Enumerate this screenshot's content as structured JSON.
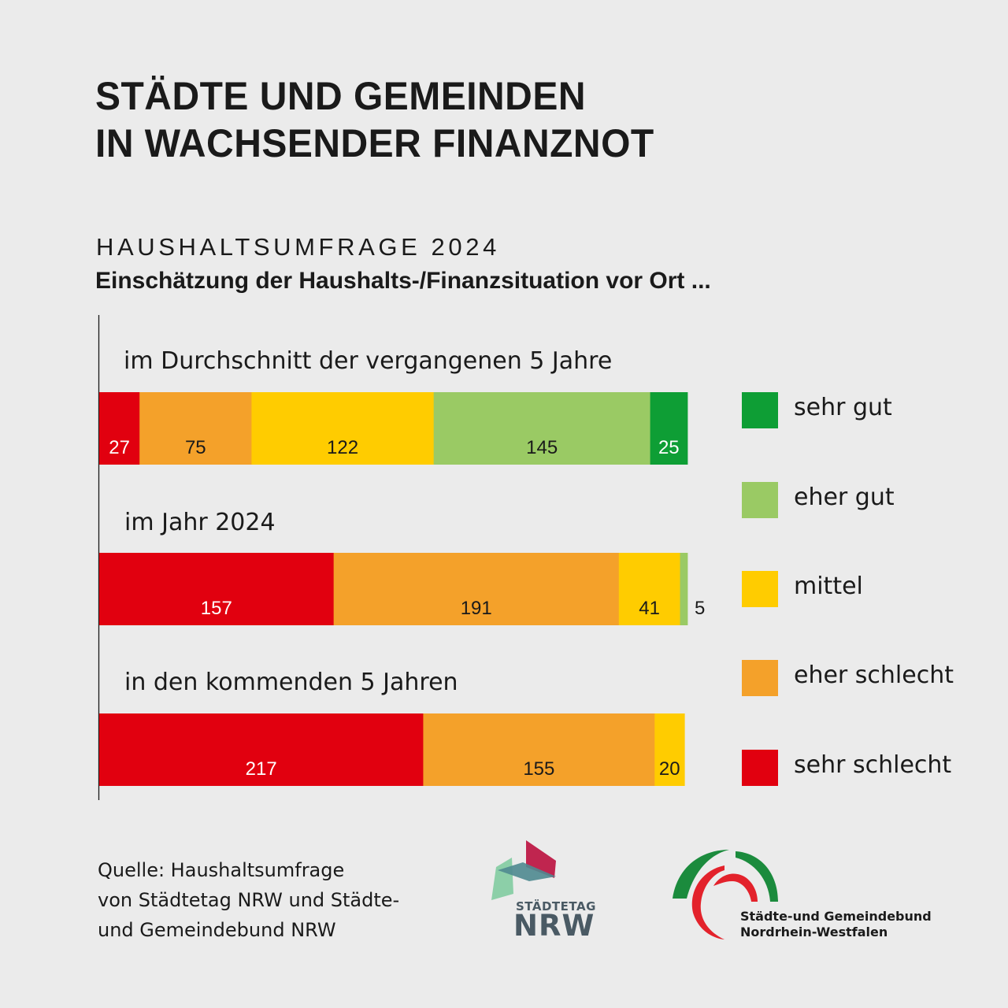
{
  "header": {
    "title_lines": [
      "STÄDTE UND GEMEINDEN",
      "IN WACHSENDER FINANZNOT"
    ],
    "kicker": "HAUSHALTSUMFRAGE 2024",
    "subtitle": "Einschätzung der Haushalts-/Finanzsituation vor Ort ..."
  },
  "chart_data": {
    "type": "bar",
    "orientation": "horizontal",
    "stacked": true,
    "title": "Einschätzung der Haushalts-/Finanzsituation vor Ort ...",
    "categories": [
      "im Durchschnitt der vergangenen 5 Jahre",
      "im Jahr 2024",
      "in den kommenden 5 Jahren"
    ],
    "series": [
      {
        "name": "sehr schlecht",
        "color": "#e1000f",
        "label_color": "#ffffff",
        "values": [
          27,
          157,
          217
        ]
      },
      {
        "name": "eher schlecht",
        "color": "#f4a12a",
        "label_color": "#1a1a1a",
        "values": [
          75,
          191,
          155
        ]
      },
      {
        "name": "mittel",
        "color": "#ffcc00",
        "label_color": "#1a1a1a",
        "values": [
          122,
          41,
          20
        ]
      },
      {
        "name": "eher gut",
        "color": "#9aca64",
        "label_color": "#1a1a1a",
        "values": [
          145,
          5,
          0
        ]
      },
      {
        "name": "sehr gut",
        "color": "#0e9e35",
        "label_color": "#ffffff",
        "values": [
          25,
          0,
          0
        ]
      }
    ],
    "xlim": [
      0,
      394
    ],
    "xlabel": "",
    "ylabel": "",
    "grid": false,
    "axis_ticks": false,
    "legend": {
      "placement": "right",
      "order": [
        "sehr gut",
        "eher gut",
        "mittel",
        "eher schlecht",
        "sehr schlecht"
      ]
    },
    "outside_labels": [
      {
        "category": "im Jahr 2024",
        "series": "eher gut",
        "value": 5
      }
    ]
  },
  "footer": {
    "source_lines": [
      "Quelle: Haushaltsumfrage",
      "von Städtetag NRW und Städte-",
      "und Gemeindebund NRW"
    ],
    "logo1": {
      "name_small": "STÄDTETAG",
      "name_large": "NRW"
    },
    "logo2": {
      "lines": [
        "Städte-und Gemeindebund",
        "Nordrhein-Westfalen"
      ]
    }
  }
}
